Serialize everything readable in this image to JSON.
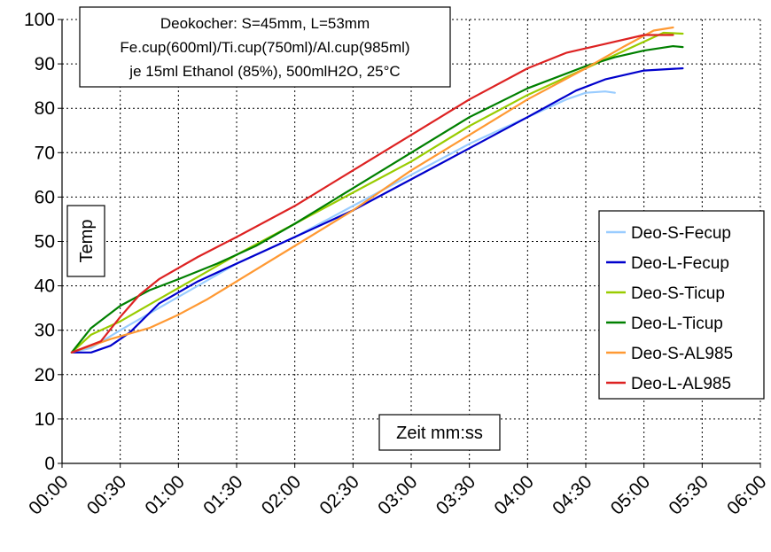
{
  "chart_data": {
    "type": "line",
    "title_lines": [
      "Deokocher: S=45mm, L=53mm",
      "Fe.cup(600ml)/Ti.cup(750ml)/Al.cup(985ml)",
      "je 15ml Ethanol (85%), 500mlH2O, 25°C"
    ],
    "xlabel": "Zeit mm:ss",
    "ylabel": "Temp",
    "x_unit": "seconds",
    "xlim": [
      0,
      360
    ],
    "ylim": [
      0,
      100
    ],
    "x_ticks": [
      "00:00",
      "00:30",
      "01:00",
      "01:30",
      "02:00",
      "02:30",
      "03:00",
      "03:30",
      "04:00",
      "04:30",
      "05:00",
      "05:30",
      "06:00"
    ],
    "y_ticks": [
      0,
      10,
      20,
      30,
      40,
      50,
      60,
      70,
      80,
      90,
      100
    ],
    "grid": true,
    "legend_position": "right",
    "series": [
      {
        "name": "Deo-S-Fecup",
        "color": "#99ccff",
        "x": [
          5,
          15,
          30,
          50,
          70,
          90,
          120,
          150,
          180,
          210,
          240,
          260,
          270,
          280,
          285
        ],
        "y": [
          25,
          26,
          30,
          35,
          40,
          45,
          51,
          58,
          65,
          72,
          78,
          82,
          83.5,
          83.8,
          83.5
        ]
      },
      {
        "name": "Deo-L-Fecup",
        "color": "#0000cc",
        "x": [
          5,
          15,
          25,
          35,
          50,
          70,
          90,
          120,
          150,
          180,
          210,
          240,
          265,
          280,
          300,
          320
        ],
        "y": [
          25,
          25,
          26.5,
          29.5,
          36,
          41,
          45,
          51,
          57,
          64,
          71,
          78,
          84,
          86.5,
          88.5,
          89
        ]
      },
      {
        "name": "Deo-S-Ticup",
        "color": "#99cc00",
        "x": [
          5,
          15,
          30,
          50,
          70,
          90,
          120,
          150,
          180,
          210,
          240,
          270,
          290,
          310,
          320
        ],
        "y": [
          25,
          29,
          32,
          37,
          42,
          47,
          54,
          61,
          68,
          76,
          83,
          89,
          93,
          97,
          96.8
        ]
      },
      {
        "name": "Deo-L-Ticup",
        "color": "#008000",
        "x": [
          5,
          15,
          30,
          45,
          60,
          80,
          100,
          120,
          150,
          180,
          210,
          240,
          270,
          285,
          300,
          315,
          320
        ],
        "y": [
          25,
          30.5,
          35.5,
          39,
          41.5,
          45,
          49,
          54,
          62,
          70,
          78,
          84.5,
          89.5,
          91.5,
          93,
          94,
          93.8
        ]
      },
      {
        "name": "Deo-S-AL985",
        "color": "#ff9933",
        "x": [
          5,
          25,
          45,
          60,
          75,
          90,
          120,
          150,
          180,
          210,
          240,
          270,
          290,
          305,
          315
        ],
        "y": [
          25,
          28,
          30.5,
          33.5,
          37,
          41,
          49,
          57,
          66,
          74,
          82,
          89,
          94,
          97.5,
          98.2
        ]
      },
      {
        "name": "Deo-L-AL985",
        "color": "#dd2222",
        "x": [
          5,
          20,
          30,
          40,
          50,
          70,
          90,
          120,
          150,
          180,
          210,
          240,
          260,
          280,
          300,
          315
        ],
        "y": [
          25,
          27.5,
          33,
          38,
          41.5,
          46.5,
          51,
          58,
          66,
          74,
          82,
          89,
          92.5,
          94.5,
          96.5,
          96.5
        ]
      }
    ]
  }
}
